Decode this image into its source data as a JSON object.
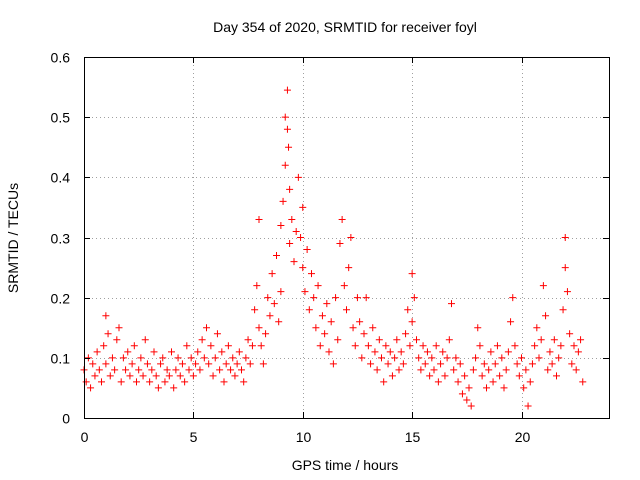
{
  "chart_data": {
    "type": "scatter",
    "title": "Day 354 of 2020, SRMTID for receiver foyl",
    "xlabel": "GPS time / hours",
    "ylabel": "SRMTID / TECUs",
    "xlim": [
      0,
      24
    ],
    "ylim": [
      0,
      0.6
    ],
    "x_ticks": [
      0,
      5,
      10,
      15,
      20
    ],
    "x_tick_labels": [
      "0",
      "5",
      "10",
      "15",
      "20"
    ],
    "y_ticks": [
      0,
      0.1,
      0.2,
      0.3,
      0.4,
      0.5,
      0.6
    ],
    "y_tick_labels": [
      "0",
      "0.1",
      "0.2",
      "0.3",
      "0.4",
      "0.5",
      "0.6"
    ],
    "grid": true,
    "marker": "plus",
    "series": [
      {
        "name": "SRMTID",
        "color": "#ff0000",
        "points": [
          [
            0.0,
            0.08
          ],
          [
            0.1,
            0.06
          ],
          [
            0.2,
            0.1
          ],
          [
            0.3,
            0.05
          ],
          [
            0.4,
            0.09
          ],
          [
            0.5,
            0.07
          ],
          [
            0.6,
            0.11
          ],
          [
            0.7,
            0.08
          ],
          [
            0.8,
            0.06
          ],
          [
            0.9,
            0.12
          ],
          [
            1.0,
            0.09
          ],
          [
            1.0,
            0.17
          ],
          [
            1.1,
            0.14
          ],
          [
            1.2,
            0.07
          ],
          [
            1.3,
            0.1
          ],
          [
            1.4,
            0.08
          ],
          [
            1.5,
            0.13
          ],
          [
            1.6,
            0.15
          ],
          [
            1.7,
            0.06
          ],
          [
            1.8,
            0.1
          ],
          [
            1.9,
            0.08
          ],
          [
            2.0,
            0.11
          ],
          [
            2.1,
            0.07
          ],
          [
            2.2,
            0.09
          ],
          [
            2.3,
            0.12
          ],
          [
            2.4,
            0.06
          ],
          [
            2.5,
            0.08
          ],
          [
            2.6,
            0.1
          ],
          [
            2.7,
            0.07
          ],
          [
            2.8,
            0.13
          ],
          [
            2.9,
            0.09
          ],
          [
            3.0,
            0.06
          ],
          [
            3.1,
            0.08
          ],
          [
            3.2,
            0.11
          ],
          [
            3.3,
            0.07
          ],
          [
            3.4,
            0.05
          ],
          [
            3.5,
            0.09
          ],
          [
            3.6,
            0.1
          ],
          [
            3.7,
            0.06
          ],
          [
            3.8,
            0.08
          ],
          [
            3.9,
            0.07
          ],
          [
            4.0,
            0.11
          ],
          [
            4.1,
            0.05
          ],
          [
            4.2,
            0.08
          ],
          [
            4.3,
            0.1
          ],
          [
            4.4,
            0.07
          ],
          [
            4.5,
            0.09
          ],
          [
            4.6,
            0.06
          ],
          [
            4.7,
            0.12
          ],
          [
            4.8,
            0.08
          ],
          [
            4.9,
            0.1
          ],
          [
            5.0,
            0.07
          ],
          [
            5.1,
            0.09
          ],
          [
            5.2,
            0.11
          ],
          [
            5.3,
            0.08
          ],
          [
            5.4,
            0.13
          ],
          [
            5.5,
            0.1
          ],
          [
            5.6,
            0.15
          ],
          [
            5.7,
            0.09
          ],
          [
            5.8,
            0.12
          ],
          [
            5.9,
            0.07
          ],
          [
            6.0,
            0.1
          ],
          [
            6.1,
            0.14
          ],
          [
            6.2,
            0.08
          ],
          [
            6.3,
            0.11
          ],
          [
            6.4,
            0.06
          ],
          [
            6.5,
            0.09
          ],
          [
            6.6,
            0.12
          ],
          [
            6.7,
            0.08
          ],
          [
            6.8,
            0.1
          ],
          [
            6.9,
            0.07
          ],
          [
            7.0,
            0.09
          ],
          [
            7.1,
            0.11
          ],
          [
            7.2,
            0.08
          ],
          [
            7.3,
            0.06
          ],
          [
            7.4,
            0.1
          ],
          [
            7.5,
            0.13
          ],
          [
            7.6,
            0.09
          ],
          [
            7.7,
            0.12
          ],
          [
            7.8,
            0.18
          ],
          [
            7.9,
            0.22
          ],
          [
            8.0,
            0.33
          ],
          [
            8.0,
            0.15
          ],
          [
            8.1,
            0.12
          ],
          [
            8.2,
            0.09
          ],
          [
            8.3,
            0.14
          ],
          [
            8.4,
            0.2
          ],
          [
            8.5,
            0.17
          ],
          [
            8.6,
            0.24
          ],
          [
            8.7,
            0.19
          ],
          [
            8.8,
            0.27
          ],
          [
            8.9,
            0.16
          ],
          [
            9.0,
            0.32
          ],
          [
            9.0,
            0.21
          ],
          [
            9.1,
            0.36
          ],
          [
            9.2,
            0.42
          ],
          [
            9.2,
            0.5
          ],
          [
            9.3,
            0.545
          ],
          [
            9.3,
            0.48
          ],
          [
            9.35,
            0.45
          ],
          [
            9.4,
            0.38
          ],
          [
            9.4,
            0.29
          ],
          [
            9.5,
            0.33
          ],
          [
            9.6,
            0.26
          ],
          [
            9.7,
            0.31
          ],
          [
            9.8,
            0.4
          ],
          [
            9.9,
            0.3
          ],
          [
            10.0,
            0.35
          ],
          [
            10.0,
            0.25
          ],
          [
            10.1,
            0.21
          ],
          [
            10.2,
            0.28
          ],
          [
            10.3,
            0.18
          ],
          [
            10.4,
            0.24
          ],
          [
            10.5,
            0.2
          ],
          [
            10.6,
            0.15
          ],
          [
            10.7,
            0.22
          ],
          [
            10.8,
            0.12
          ],
          [
            10.9,
            0.17
          ],
          [
            11.0,
            0.14
          ],
          [
            11.1,
            0.19
          ],
          [
            11.2,
            0.11
          ],
          [
            11.3,
            0.16
          ],
          [
            11.4,
            0.09
          ],
          [
            11.5,
            0.2
          ],
          [
            11.6,
            0.13
          ],
          [
            11.7,
            0.29
          ],
          [
            11.8,
            0.33
          ],
          [
            11.9,
            0.22
          ],
          [
            12.0,
            0.18
          ],
          [
            12.1,
            0.25
          ],
          [
            12.2,
            0.3
          ],
          [
            12.3,
            0.15
          ],
          [
            12.4,
            0.12
          ],
          [
            12.5,
            0.2
          ],
          [
            12.6,
            0.16
          ],
          [
            12.7,
            0.1
          ],
          [
            12.8,
            0.14
          ],
          [
            12.9,
            0.2
          ],
          [
            13.0,
            0.12
          ],
          [
            13.1,
            0.09
          ],
          [
            13.2,
            0.15
          ],
          [
            13.3,
            0.11
          ],
          [
            13.4,
            0.08
          ],
          [
            13.5,
            0.13
          ],
          [
            13.6,
            0.1
          ],
          [
            13.7,
            0.06
          ],
          [
            13.8,
            0.12
          ],
          [
            13.9,
            0.09
          ],
          [
            14.0,
            0.11
          ],
          [
            14.1,
            0.07
          ],
          [
            14.2,
            0.1
          ],
          [
            14.3,
            0.13
          ],
          [
            14.4,
            0.08
          ],
          [
            14.5,
            0.11
          ],
          [
            14.6,
            0.09
          ],
          [
            14.7,
            0.14
          ],
          [
            14.8,
            0.18
          ],
          [
            14.9,
            0.12
          ],
          [
            15.0,
            0.24
          ],
          [
            15.0,
            0.16
          ],
          [
            15.1,
            0.2
          ],
          [
            15.2,
            0.13
          ],
          [
            15.3,
            0.1
          ],
          [
            15.4,
            0.08
          ],
          [
            15.5,
            0.12
          ],
          [
            15.6,
            0.09
          ],
          [
            15.7,
            0.11
          ],
          [
            15.8,
            0.07
          ],
          [
            15.9,
            0.1
          ],
          [
            16.0,
            0.08
          ],
          [
            16.1,
            0.12
          ],
          [
            16.2,
            0.06
          ],
          [
            16.3,
            0.09
          ],
          [
            16.4,
            0.11
          ],
          [
            16.5,
            0.07
          ],
          [
            16.6,
            0.1
          ],
          [
            16.7,
            0.13
          ],
          [
            16.8,
            0.19
          ],
          [
            16.9,
            0.08
          ],
          [
            17.0,
            0.1
          ],
          [
            17.1,
            0.06
          ],
          [
            17.2,
            0.09
          ],
          [
            17.3,
            0.04
          ],
          [
            17.4,
            0.07
          ],
          [
            17.5,
            0.03
          ],
          [
            17.6,
            0.05
          ],
          [
            17.7,
            0.02
          ],
          [
            17.8,
            0.08
          ],
          [
            17.9,
            0.1
          ],
          [
            18.0,
            0.15
          ],
          [
            18.1,
            0.12
          ],
          [
            18.2,
            0.07
          ],
          [
            18.3,
            0.09
          ],
          [
            18.4,
            0.05
          ],
          [
            18.5,
            0.08
          ],
          [
            18.6,
            0.11
          ],
          [
            18.7,
            0.06
          ],
          [
            18.8,
            0.09
          ],
          [
            18.9,
            0.12
          ],
          [
            19.0,
            0.07
          ],
          [
            19.1,
            0.1
          ],
          [
            19.2,
            0.05
          ],
          [
            19.3,
            0.08
          ],
          [
            19.4,
            0.11
          ],
          [
            19.5,
            0.16
          ],
          [
            19.6,
            0.2
          ],
          [
            19.7,
            0.12
          ],
          [
            19.8,
            0.09
          ],
          [
            19.9,
            0.07
          ],
          [
            20.0,
            0.1
          ],
          [
            20.1,
            0.05
          ],
          [
            20.2,
            0.08
          ],
          [
            20.3,
            0.02
          ],
          [
            20.4,
            0.06
          ],
          [
            20.5,
            0.09
          ],
          [
            20.6,
            0.12
          ],
          [
            20.7,
            0.15
          ],
          [
            20.8,
            0.1
          ],
          [
            20.9,
            0.13
          ],
          [
            21.0,
            0.22
          ],
          [
            21.1,
            0.17
          ],
          [
            21.2,
            0.08
          ],
          [
            21.3,
            0.11
          ],
          [
            21.4,
            0.09
          ],
          [
            21.5,
            0.13
          ],
          [
            21.6,
            0.07
          ],
          [
            21.7,
            0.1
          ],
          [
            21.8,
            0.12
          ],
          [
            21.9,
            0.18
          ],
          [
            22.0,
            0.25
          ],
          [
            22.0,
            0.3
          ],
          [
            22.1,
            0.21
          ],
          [
            22.2,
            0.14
          ],
          [
            22.3,
            0.09
          ],
          [
            22.4,
            0.12
          ],
          [
            22.5,
            0.08
          ],
          [
            22.6,
            0.11
          ],
          [
            22.7,
            0.13
          ],
          [
            22.8,
            0.06
          ]
        ]
      }
    ]
  }
}
